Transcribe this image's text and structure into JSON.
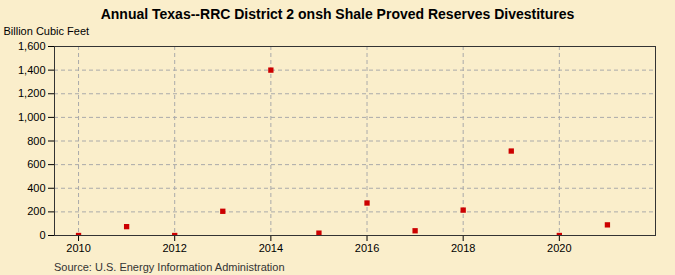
{
  "chart_data": {
    "type": "scatter",
    "title": "Annual Texas--RRC District 2 onsh Shale Proved Reserves Divestitures",
    "ylabel": "Billion Cubic Feet",
    "annotation": "Source: U.S. Energy Information Administration",
    "x": [
      2010,
      2011,
      2012,
      2013,
      2014,
      2015,
      2016,
      2017,
      2018,
      2019,
      2020,
      2021
    ],
    "values": [
      0,
      75,
      0,
      205,
      1400,
      20,
      275,
      40,
      215,
      715,
      0,
      90
    ],
    "color": "#cc0000",
    "marker": "square",
    "xlim": [
      2009.5,
      2022.0
    ],
    "ylim": [
      0,
      1600
    ],
    "xticks": [
      2010,
      2012,
      2014,
      2016,
      2018,
      2020
    ],
    "yticks": [
      0,
      200,
      400,
      600,
      800,
      {
        "value": 1000,
        "label": "1,000"
      },
      {
        "value": 1200,
        "label": "1,200"
      },
      {
        "value": 1400,
        "label": "1,400"
      },
      {
        "value": 1600,
        "label": "1,600"
      }
    ],
    "grid": true
  }
}
